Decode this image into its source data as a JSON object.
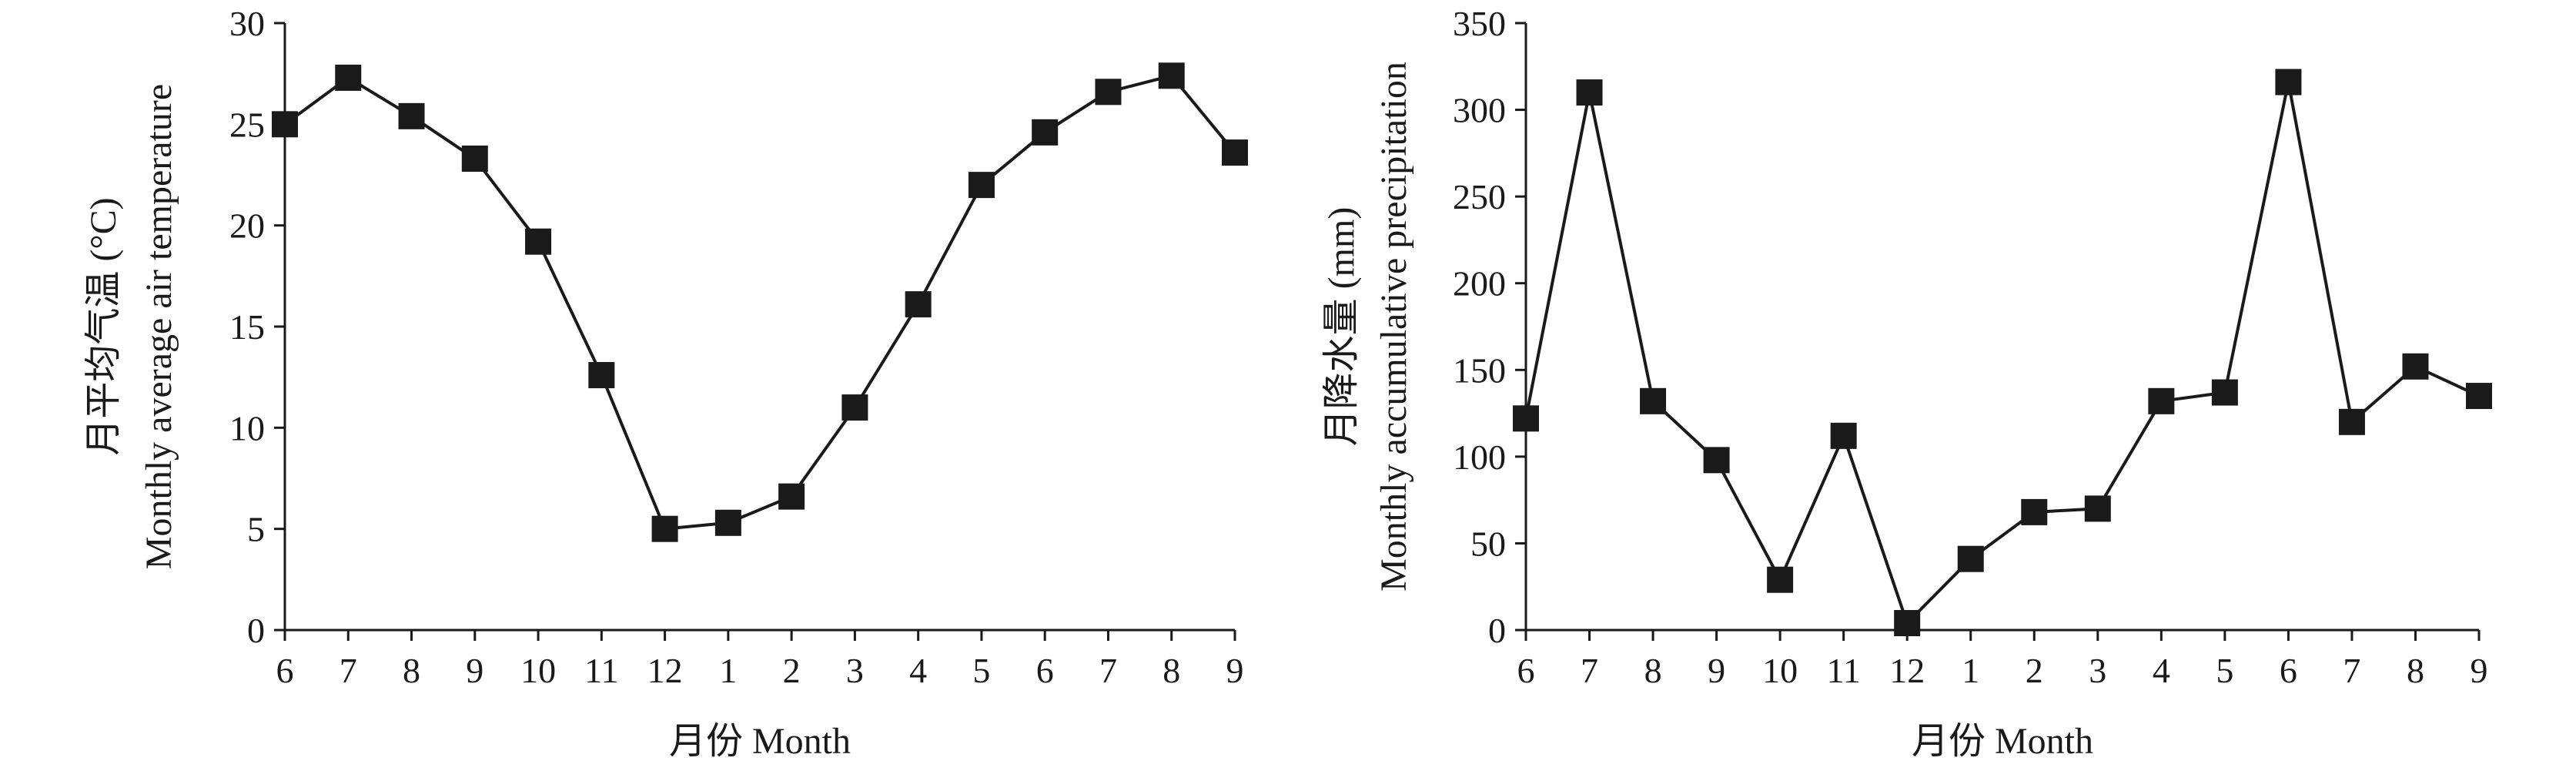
{
  "chart_data": [
    {
      "type": "line",
      "categories": [
        "6",
        "7",
        "8",
        "9",
        "10",
        "11",
        "12",
        "1",
        "2",
        "3",
        "4",
        "5",
        "6",
        "7",
        "8",
        "9"
      ],
      "xlabel": "月份 Month",
      "ylabel_line1": "月平均气温 (°C)",
      "ylabel_line2": "Monthly average air temperature",
      "ylim": [
        0,
        30
      ],
      "yticks": [
        "0",
        "5",
        "10",
        "15",
        "20",
        "25",
        "30"
      ],
      "series": [
        {
          "values": [
            25.0,
            27.3,
            25.4,
            23.3,
            19.2,
            12.6,
            5.0,
            5.3,
            6.6,
            11.0,
            16.1,
            22.0,
            24.6,
            26.6,
            27.4,
            23.6
          ]
        }
      ],
      "marker": "square",
      "grid": false
    },
    {
      "type": "line",
      "categories": [
        "6",
        "7",
        "8",
        "9",
        "10",
        "11",
        "12",
        "1",
        "2",
        "3",
        "4",
        "5",
        "6",
        "7",
        "8",
        "9"
      ],
      "xlabel": "月份 Month",
      "ylabel_line1": "月降水量 (mm)",
      "ylabel_line2": "Monthly accumulative precipitation",
      "ylim": [
        0,
        350
      ],
      "yticks": [
        "0",
        "50",
        "100",
        "150",
        "200",
        "250",
        "300",
        "350"
      ],
      "series": [
        {
          "values": [
            122,
            310,
            132,
            98,
            29,
            112,
            4,
            41,
            68,
            70,
            132,
            137,
            316,
            120,
            152,
            135
          ]
        }
      ],
      "marker": "square",
      "grid": false
    }
  ]
}
